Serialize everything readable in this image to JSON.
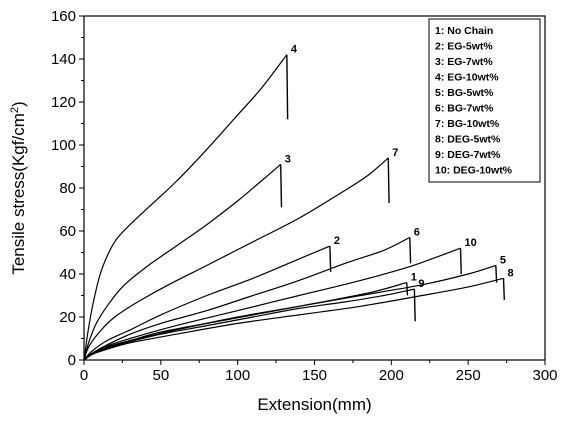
{
  "chart_data": {
    "type": "line",
    "title": "",
    "xlabel": "Extension(mm)",
    "ylabel": "Tensile stress(Kgf/cm²)",
    "ylabel_main": "Tensile stress(Kgf/cm",
    "ylabel_sup": "2",
    "ylabel_tail": ")",
    "xlim": [
      0,
      300
    ],
    "ylim": [
      0,
      160
    ],
    "xticks": [
      0,
      50,
      100,
      150,
      200,
      250,
      300
    ],
    "yticks": [
      0,
      20,
      40,
      60,
      80,
      100,
      120,
      140,
      160
    ],
    "grid": false,
    "legend_position": "top-right",
    "legend": [
      "1: No Chain",
      "2: EG-5wt%",
      "3: EG-7wt%",
      "4: EG-10wt%",
      "5: BG-5wt%",
      "6: BG-7wt%",
      "7: BG-10wt%",
      "8: DEG-5wt%",
      "9: DEG-7wt%",
      "10: DEG-10wt%"
    ],
    "series": [
      {
        "name": "1",
        "break_x": 210,
        "break_y": 36,
        "drop_to": 30,
        "x": [
          0,
          5,
          15,
          30,
          50,
          80,
          110,
          140,
          170,
          190,
          210
        ],
        "y": [
          0,
          2.5,
          6,
          9,
          13,
          17,
          21,
          25,
          29,
          32,
          36
        ]
      },
      {
        "name": "2",
        "break_x": 160,
        "break_y": 53,
        "drop_to": 41,
        "x": [
          0,
          5,
          15,
          30,
          50,
          80,
          110,
          140,
          160
        ],
        "y": [
          0,
          4,
          9,
          14,
          21,
          30,
          38,
          47,
          53
        ]
      },
      {
        "name": "3",
        "break_x": 128,
        "break_y": 91,
        "drop_to": 71,
        "x": [
          0,
          3,
          8,
          15,
          25,
          40,
          60,
          80,
          100,
          115,
          128
        ],
        "y": [
          0,
          8,
          17,
          25,
          34,
          43,
          53,
          63,
          74,
          83,
          91
        ]
      },
      {
        "name": "4",
        "break_x": 132,
        "break_y": 142,
        "drop_to": 112,
        "x": [
          0,
          3,
          7,
          12,
          20,
          30,
          45,
          60,
          80,
          100,
          115,
          132
        ],
        "y": [
          0,
          15,
          30,
          43,
          55,
          63,
          73,
          83,
          98,
          114,
          126,
          142
        ]
      },
      {
        "name": "5",
        "break_x": 268,
        "break_y": 44,
        "drop_to": 36,
        "x": [
          0,
          5,
          15,
          30,
          60,
          100,
          140,
          180,
          220,
          250,
          268
        ],
        "y": [
          0,
          3,
          6,
          9,
          14,
          20,
          25,
          30,
          35,
          40,
          44
        ]
      },
      {
        "name": "6",
        "break_x": 212,
        "break_y": 57,
        "drop_to": 45,
        "x": [
          0,
          5,
          15,
          30,
          50,
          80,
          110,
          140,
          170,
          195,
          212
        ],
        "y": [
          0,
          3,
          7,
          12,
          17,
          23,
          30,
          37,
          45,
          51,
          57
        ]
      },
      {
        "name": "7",
        "break_x": 198,
        "break_y": 94,
        "drop_to": 73,
        "x": [
          0,
          3,
          10,
          20,
          35,
          55,
          80,
          110,
          140,
          170,
          185,
          198
        ],
        "y": [
          0,
          6,
          13,
          20,
          27,
          35,
          44,
          55,
          66,
          79,
          86,
          94
        ]
      },
      {
        "name": "8",
        "break_x": 273,
        "break_y": 38,
        "drop_to": 28,
        "x": [
          0,
          5,
          15,
          30,
          60,
          100,
          140,
          180,
          220,
          250,
          273
        ],
        "y": [
          0,
          2.5,
          5,
          8,
          12,
          17,
          21,
          25,
          30,
          34,
          38
        ]
      },
      {
        "name": "9",
        "break_x": 215,
        "break_y": 33,
        "drop_to": 18,
        "x": [
          0,
          5,
          15,
          30,
          50,
          80,
          110,
          140,
          170,
          195,
          215
        ],
        "y": [
          0,
          2.5,
          5.5,
          8.5,
          12,
          16,
          20,
          24,
          27,
          30,
          33
        ]
      },
      {
        "name": "10",
        "break_x": 245,
        "break_y": 52,
        "drop_to": 40,
        "x": [
          0,
          5,
          15,
          30,
          60,
          100,
          140,
          180,
          210,
          230,
          245
        ],
        "y": [
          0,
          3,
          6.5,
          10,
          16,
          23,
          30,
          37,
          43,
          48,
          52
        ]
      }
    ]
  }
}
